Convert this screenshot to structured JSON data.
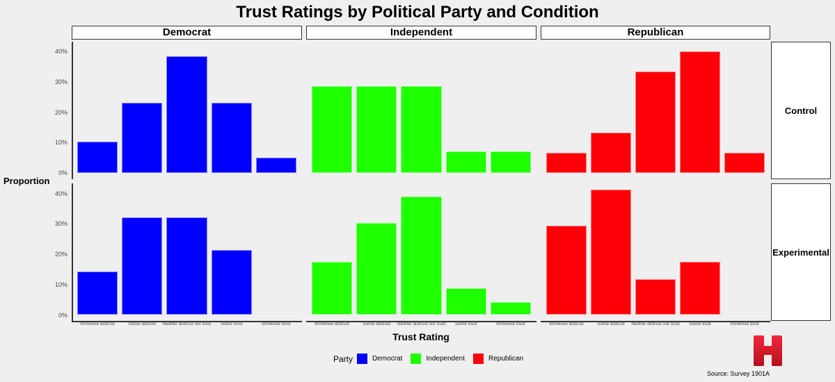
{
  "title": "Trust Ratings by Political Party and Condition",
  "ylabel": "Proportion",
  "xlabel": "Trust Rating",
  "legend": {
    "title": "Party",
    "items": [
      {
        "label": "Democrat",
        "color": "#0000ff"
      },
      {
        "label": "Independent",
        "color": "#1eff00"
      },
      {
        "label": "Republican",
        "color": "#ff0008"
      }
    ]
  },
  "source": "Source: Survey 1901A",
  "logo": "H",
  "facets": {
    "columns": [
      "Democrat",
      "Independent",
      "Republican"
    ],
    "rows": [
      "Control",
      "Experimental"
    ]
  },
  "y_ticks": [
    "0%",
    "10%",
    "20%",
    "30%",
    "40%"
  ],
  "x_ticks": [
    "Immense distrust",
    "Some distrust",
    "Neither distrust nor trust",
    "Some trust",
    "Immense trust"
  ],
  "chart_data": {
    "type": "bar",
    "title": "Trust Ratings by Political Party and Condition",
    "xlabel": "Trust Rating",
    "ylabel": "Proportion",
    "ylim": [
      0,
      0.42
    ],
    "y_format": "percent",
    "categories": [
      "Immense distrust",
      "Some distrust",
      "Neither distrust nor trust",
      "Some trust",
      "Immense trust"
    ],
    "facet_cols": [
      "Democrat",
      "Independent",
      "Republican"
    ],
    "facet_rows": [
      "Control",
      "Experimental"
    ],
    "legend_position": "bottom",
    "grid": false,
    "series": [
      {
        "party": "Democrat",
        "condition": "Control",
        "color": "#0000ff",
        "values": [
          0.103,
          0.231,
          0.385,
          0.231,
          0.051
        ]
      },
      {
        "party": "Independent",
        "condition": "Control",
        "color": "#1eff00",
        "values": [
          0.286,
          0.286,
          0.286,
          0.071,
          0.071
        ]
      },
      {
        "party": "Republican",
        "condition": "Control",
        "color": "#ff0008",
        "values": [
          0.067,
          0.133,
          0.333,
          0.4,
          0.067
        ]
      },
      {
        "party": "Democrat",
        "condition": "Experimental",
        "color": "#0000ff",
        "values": [
          0.143,
          0.321,
          0.321,
          0.214,
          0.0
        ]
      },
      {
        "party": "Independent",
        "condition": "Experimental",
        "color": "#1eff00",
        "values": [
          0.174,
          0.304,
          0.391,
          0.087,
          0.043
        ]
      },
      {
        "party": "Republican",
        "condition": "Experimental",
        "color": "#ff0008",
        "values": [
          0.294,
          0.412,
          0.118,
          0.176,
          0.0
        ]
      }
    ]
  }
}
